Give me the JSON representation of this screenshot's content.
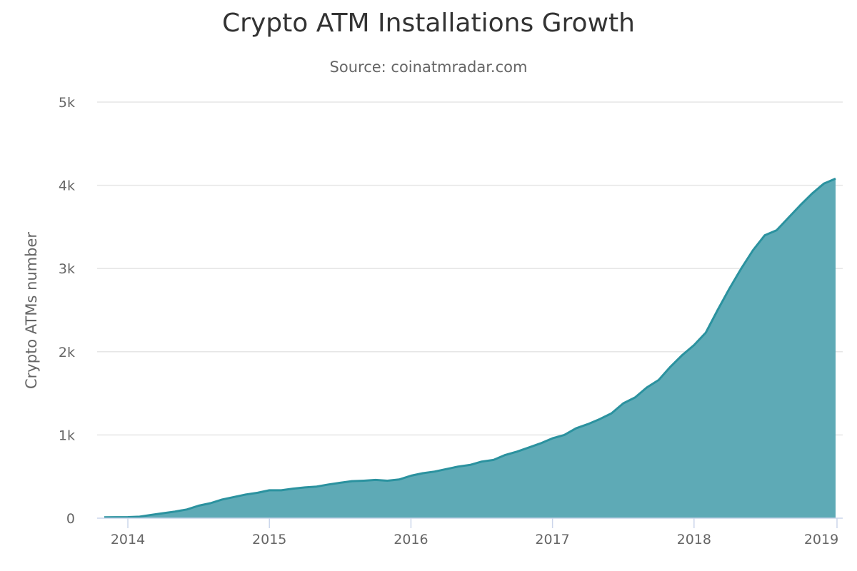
{
  "chart": {
    "title": "Crypto ATM Installations Growth",
    "subtitle": "Source: coinatmradar.com",
    "ylabel": "Crypto ATMs number",
    "y_ticks": [
      "0",
      "1k",
      "2k",
      "3k",
      "4k",
      "5k"
    ],
    "x_ticks": [
      "2014",
      "2015",
      "2016",
      "2017",
      "2018",
      "2019"
    ],
    "colors": {
      "line": "#2b929f",
      "fill": "#5eaab6",
      "grid": "#e6e6e6",
      "axis": "#ccd6eb"
    }
  },
  "chart_data": {
    "type": "area",
    "title": "Crypto ATM Installations Growth",
    "subtitle": "Source: coinatmradar.com",
    "xlabel": "",
    "ylabel": "Crypto ATMs number",
    "ylim": [
      0,
      5000
    ],
    "grid": true,
    "legend": "none",
    "x": [
      "2013-11",
      "2013-12",
      "2014-01",
      "2014-02",
      "2014-03",
      "2014-04",
      "2014-05",
      "2014-06",
      "2014-07",
      "2014-08",
      "2014-09",
      "2014-10",
      "2014-11",
      "2014-12",
      "2015-01",
      "2015-02",
      "2015-03",
      "2015-04",
      "2015-05",
      "2015-06",
      "2015-07",
      "2015-08",
      "2015-09",
      "2015-10",
      "2015-11",
      "2015-12",
      "2016-01",
      "2016-02",
      "2016-03",
      "2016-04",
      "2016-05",
      "2016-06",
      "2016-07",
      "2016-08",
      "2016-09",
      "2016-10",
      "2016-11",
      "2016-12",
      "2017-01",
      "2017-02",
      "2017-03",
      "2017-04",
      "2017-05",
      "2017-06",
      "2017-07",
      "2017-08",
      "2017-09",
      "2017-10",
      "2017-11",
      "2017-12",
      "2018-01",
      "2018-02",
      "2018-03",
      "2018-04",
      "2018-05",
      "2018-06",
      "2018-07",
      "2018-08",
      "2018-09",
      "2018-10",
      "2018-11",
      "2018-12",
      "2019-01"
    ],
    "series": [
      {
        "name": "Crypto ATMs",
        "values": [
          10,
          12,
          13,
          18,
          40,
          60,
          80,
          105,
          150,
          180,
          225,
          255,
          285,
          305,
          335,
          335,
          355,
          370,
          380,
          405,
          425,
          445,
          450,
          460,
          450,
          465,
          510,
          540,
          560,
          590,
          620,
          640,
          680,
          700,
          760,
          800,
          850,
          900,
          960,
          1000,
          1080,
          1130,
          1190,
          1260,
          1380,
          1450,
          1570,
          1660,
          1820,
          1960,
          2080,
          2230,
          2500,
          2760,
          3000,
          3220,
          3400,
          3460,
          3610,
          3760,
          3900,
          4020,
          4080
        ]
      }
    ]
  }
}
